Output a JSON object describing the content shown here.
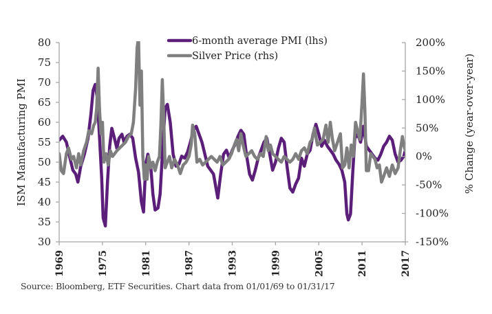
{
  "chart_data": {
    "type": "line",
    "title": "",
    "legend": {
      "placement": "top-center",
      "entries": [
        {
          "name": "6-month average PMI (lhs)",
          "color": "#5b1f7a"
        },
        {
          "name": "Silver Price (rhs)",
          "color": "#7f7f7f"
        }
      ]
    },
    "left_axis": {
      "label": "ISM Manufacturing PMI",
      "range": [
        30,
        80
      ],
      "ticks": [
        30,
        35,
        40,
        45,
        50,
        55,
        60,
        65,
        70,
        75,
        80
      ],
      "tick_labels": [
        "30",
        "35",
        "40",
        "45",
        "50",
        "55",
        "60",
        "65",
        "70",
        "75",
        "80"
      ]
    },
    "right_axis": {
      "label": "% Change (year-over-year)",
      "range": [
        -150,
        200
      ],
      "ticks": [
        -150,
        -100,
        -50,
        0,
        50,
        100,
        150,
        200
      ],
      "tick_labels": [
        "-150%",
        "-100%",
        "-50%",
        "0%",
        "50%",
        "100%",
        "150%",
        "200%"
      ]
    },
    "x_axis": {
      "label": "",
      "range": [
        1969,
        2017
      ],
      "ticks": [
        1969,
        1975,
        1981,
        1987,
        1993,
        1999,
        2005,
        2011,
        2017
      ],
      "tick_labels": [
        "1969",
        "1975",
        "1981",
        "1987",
        "1993",
        "1999",
        "2005",
        "2011",
        "2017"
      ]
    },
    "grid": false,
    "series": [
      {
        "name": "6-month average PMI (lhs)",
        "axis": "left",
        "color": "#5b1f7a",
        "x": [
          1969.0,
          1969.5,
          1970.0,
          1970.5,
          1970.9,
          1971.3,
          1971.6,
          1972.0,
          1972.5,
          1973.0,
          1973.4,
          1973.7,
          1974.0,
          1974.3,
          1974.6,
          1974.9,
          1975.1,
          1975.4,
          1975.7,
          1976.0,
          1976.3,
          1976.6,
          1977.0,
          1977.3,
          1977.7,
          1978.0,
          1978.4,
          1978.8,
          1979.2,
          1979.6,
          1980.0,
          1980.4,
          1980.7,
          1981.0,
          1981.3,
          1981.7,
          1982.0,
          1982.3,
          1982.7,
          1983.0,
          1983.4,
          1983.7,
          1984.0,
          1984.4,
          1984.8,
          1985.2,
          1985.6,
          1986.0,
          1986.4,
          1986.8,
          1987.2,
          1987.6,
          1988.0,
          1988.4,
          1988.8,
          1989.2,
          1989.6,
          1990.0,
          1990.4,
          1990.8,
          1991.0,
          1991.4,
          1991.8,
          1992.2,
          1992.6,
          1993.0,
          1993.4,
          1993.8,
          1994.2,
          1994.6,
          1995.0,
          1995.4,
          1995.8,
          1996.2,
          1996.6,
          1997.0,
          1997.4,
          1997.8,
          1998.2,
          1998.6,
          1999.0,
          1999.4,
          1999.8,
          2000.2,
          2000.6,
          2001.0,
          2001.4,
          2001.8,
          2002.2,
          2002.6,
          2003.0,
          2003.4,
          2003.8,
          2004.2,
          2004.6,
          2005.0,
          2005.4,
          2005.8,
          2006.2,
          2006.6,
          2007.0,
          2007.4,
          2007.8,
          2008.2,
          2008.6,
          2008.9,
          2009.1,
          2009.4,
          2009.7,
          2010.0,
          2010.4,
          2010.8,
          2011.2,
          2011.6,
          2012.0,
          2012.4,
          2012.8,
          2013.2,
          2013.6,
          2014.0,
          2014.4,
          2014.8,
          2015.2,
          2015.6,
          2016.0,
          2016.4,
          2016.8,
          2017.0
        ],
        "values": [
          55.5,
          56.5,
          55.0,
          51.0,
          48.0,
          47.0,
          45.0,
          49.0,
          52.0,
          56.0,
          62.0,
          68.0,
          69.5,
          66.0,
          56.0,
          46.0,
          36.0,
          34.0,
          45.0,
          54.0,
          58.5,
          56.5,
          53.5,
          56.0,
          57.0,
          55.0,
          56.5,
          57.0,
          56.0,
          51.0,
          47.5,
          40.0,
          37.5,
          49.5,
          52.0,
          49.0,
          42.0,
          38.0,
          38.5,
          42.0,
          55.0,
          63.5,
          64.5,
          60.0,
          52.0,
          49.0,
          49.5,
          51.5,
          51.0,
          52.5,
          55.0,
          58.0,
          59.0,
          57.0,
          55.0,
          52.0,
          49.0,
          48.0,
          47.0,
          43.0,
          41.0,
          47.0,
          52.0,
          53.0,
          51.0,
          53.0,
          54.5,
          56.5,
          58.0,
          57.0,
          51.5,
          47.0,
          45.5,
          48.0,
          51.0,
          53.0,
          55.0,
          56.0,
          52.0,
          48.0,
          50.0,
          53.5,
          56.0,
          55.0,
          49.0,
          43.5,
          42.5,
          44.5,
          46.0,
          51.0,
          49.0,
          52.0,
          53.0,
          57.0,
          59.5,
          57.0,
          54.0,
          55.5,
          54.0,
          53.0,
          52.0,
          50.5,
          49.5,
          48.0,
          45.0,
          37.0,
          35.5,
          37.0,
          47.0,
          56.0,
          57.0,
          55.0,
          59.0,
          54.0,
          53.0,
          52.0,
          51.0,
          50.5,
          52.0,
          54.0,
          55.0,
          56.5,
          55.5,
          52.0,
          50.0,
          50.5,
          51.5,
          53.0
        ]
      },
      {
        "name": "Silver Price (rhs)",
        "axis": "right",
        "color": "#7f7f7f",
        "x": [
          1969.0,
          1969.3,
          1969.6,
          1970.0,
          1970.3,
          1970.7,
          1971.0,
          1971.4,
          1971.7,
          1972.0,
          1972.4,
          1972.8,
          1973.1,
          1973.5,
          1973.8,
          1974.0,
          1974.2,
          1974.4,
          1974.6,
          1974.8,
          1975.0,
          1975.2,
          1975.5,
          1975.8,
          1976.1,
          1976.4,
          1976.7,
          1977.0,
          1977.4,
          1977.8,
          1978.2,
          1978.6,
          1979.0,
          1979.3,
          1979.6,
          1979.8,
          1980.0,
          1980.2,
          1980.4,
          1980.6,
          1980.8,
          1981.0,
          1981.2,
          1981.4,
          1981.7,
          1982.0,
          1982.3,
          1982.6,
          1982.9,
          1983.1,
          1983.3,
          1983.5,
          1983.7,
          1984.0,
          1984.3,
          1984.6,
          1985.0,
          1985.4,
          1985.8,
          1986.2,
          1986.6,
          1987.0,
          1987.3,
          1987.5,
          1987.8,
          1988.1,
          1988.5,
          1988.9,
          1989.3,
          1989.7,
          1990.1,
          1990.5,
          1990.9,
          1991.3,
          1991.7,
          1992.1,
          1992.5,
          1992.9,
          1993.3,
          1993.6,
          1993.9,
          1994.2,
          1994.5,
          1994.9,
          1995.3,
          1995.7,
          1996.1,
          1996.5,
          1996.9,
          1997.3,
          1997.7,
          1998.0,
          1998.3,
          1998.6,
          1999.0,
          1999.4,
          1999.8,
          2000.2,
          2000.6,
          2001.0,
          2001.4,
          2001.8,
          2002.2,
          2002.6,
          2003.0,
          2003.4,
          2003.8,
          2004.1,
          2004.4,
          2004.8,
          2005.2,
          2005.6,
          2006.0,
          2006.3,
          2006.6,
          2006.9,
          2007.2,
          2007.6,
          2008.0,
          2008.3,
          2008.6,
          2008.9,
          2009.2,
          2009.5,
          2009.8,
          2010.1,
          2010.4,
          2010.7,
          2011.0,
          2011.2,
          2011.4,
          2011.6,
          2011.9,
          2012.2,
          2012.5,
          2012.8,
          2013.1,
          2013.4,
          2013.7,
          2014.0,
          2014.4,
          2014.8,
          2015.2,
          2015.6,
          2016.0,
          2016.3,
          2016.6,
          2016.8,
          2017.0
        ],
        "values": [
          5,
          -25,
          -30,
          5,
          15,
          -5,
          0,
          -20,
          5,
          -15,
          10,
          25,
          45,
          40,
          55,
          60,
          85,
          155,
          80,
          40,
          60,
          -10,
          5,
          -15,
          10,
          0,
          5,
          10,
          15,
          20,
          25,
          35,
          40,
          60,
          120,
          190,
          210,
          90,
          150,
          0,
          -40,
          -15,
          -40,
          0,
          -20,
          -10,
          -25,
          -10,
          0,
          55,
          135,
          70,
          -20,
          -10,
          0,
          -20,
          -5,
          -15,
          -30,
          -15,
          -10,
          0,
          20,
          55,
          40,
          -10,
          -5,
          -15,
          -10,
          -5,
          0,
          -5,
          -10,
          0,
          -15,
          -10,
          -5,
          5,
          20,
          30,
          10,
          40,
          20,
          0,
          5,
          10,
          0,
          -5,
          5,
          0,
          35,
          10,
          20,
          5,
          0,
          -5,
          -10,
          0,
          -5,
          -10,
          -5,
          5,
          -5,
          10,
          15,
          5,
          25,
          30,
          50,
          20,
          25,
          30,
          55,
          25,
          60,
          30,
          10,
          25,
          40,
          -20,
          -15,
          15,
          -20,
          20,
          0,
          60,
          45,
          30,
          95,
          145,
          80,
          -25,
          -25,
          5,
          0,
          -5,
          -20,
          -15,
          -45,
          -35,
          -20,
          -35,
          -15,
          -30,
          -20,
          10,
          35,
          20,
          10
        ]
      }
    ]
  },
  "source_note": "Source: Bloomberg, ETF Securities. Chart data from 01/01/69 to 01/31/17"
}
